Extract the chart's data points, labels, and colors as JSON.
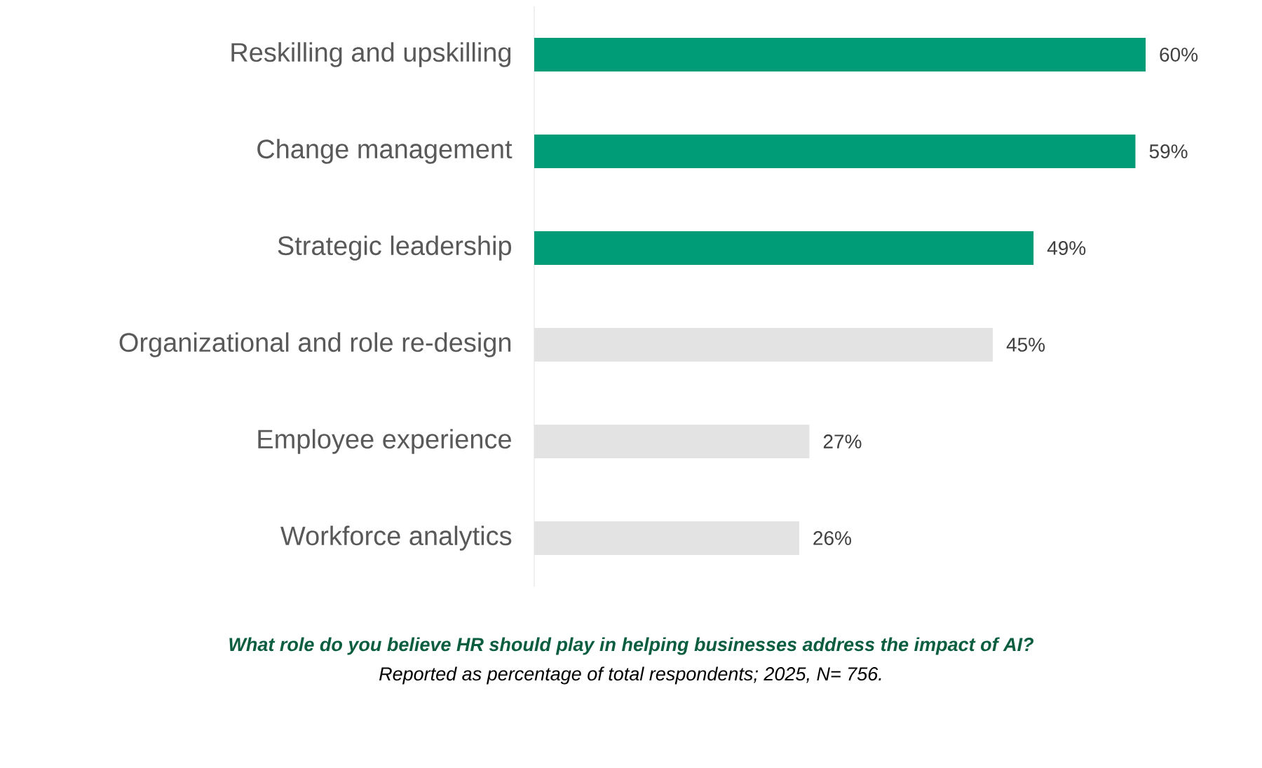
{
  "chart_data": {
    "type": "bar",
    "orientation": "horizontal",
    "categories": [
      "Reskilling and upskilling",
      "Change management",
      "Strategic leadership",
      "Organizational and role re-design",
      "Employee experience",
      "Workforce analytics"
    ],
    "values": [
      60,
      59,
      49,
      45,
      27,
      26
    ],
    "value_labels": [
      "60%",
      "59%",
      "49%",
      "45%",
      "27%",
      "26%"
    ],
    "colors": [
      "#009b77",
      "#009b77",
      "#009b77",
      "#e3e3e3",
      "#e3e3e3",
      "#e3e3e3"
    ],
    "annotations": [
      "What role do you believe HR should play in helping businesses address the impact of AI?",
      "Reported as percentage of total respondents; 2025, N= 756."
    ]
  }
}
